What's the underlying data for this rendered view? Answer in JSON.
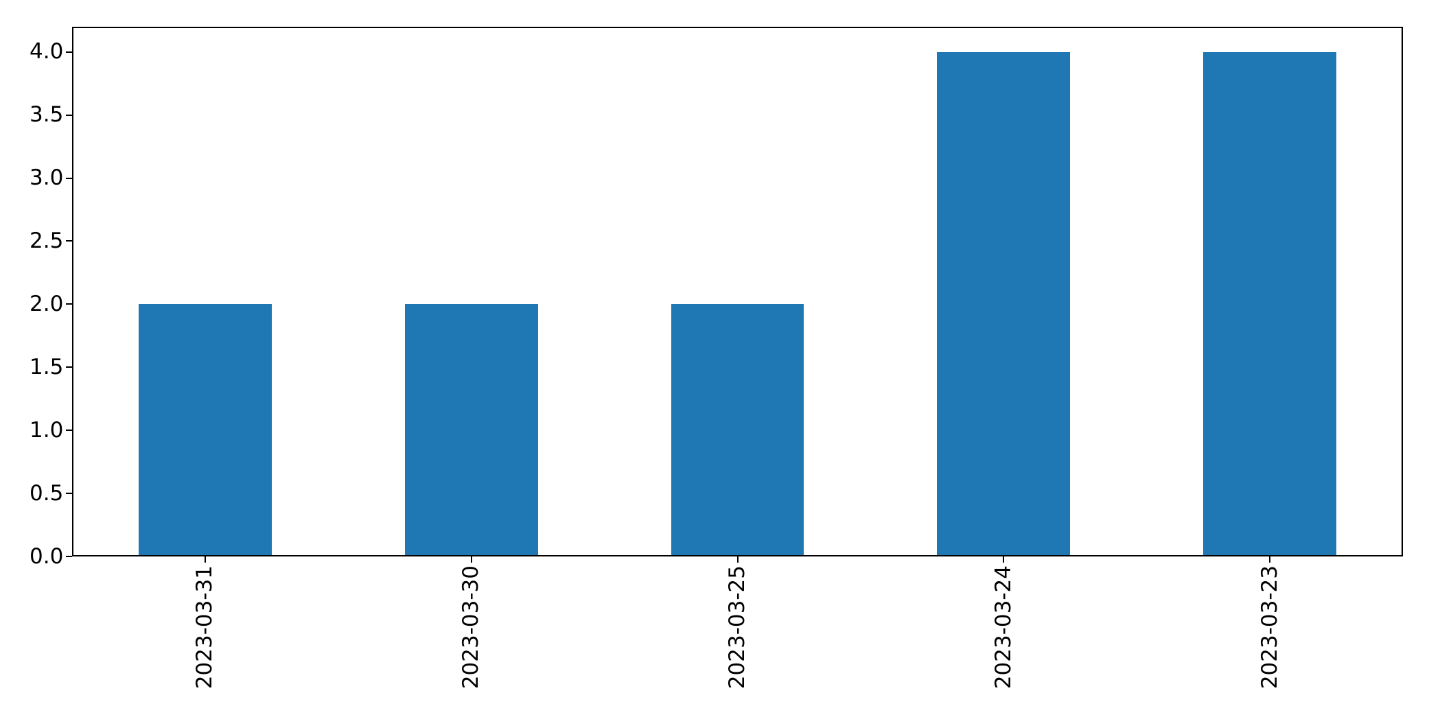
{
  "chart_data": {
    "type": "bar",
    "categories": [
      "2023-03-31",
      "2023-03-30",
      "2023-03-25",
      "2023-03-24",
      "2023-03-23"
    ],
    "values": [
      2,
      2,
      2,
      4,
      4
    ],
    "title": "",
    "xlabel": "",
    "ylabel": "",
    "ylim": [
      0,
      4.2
    ],
    "yticks": [
      0.0,
      0.5,
      1.0,
      1.5,
      2.0,
      2.5,
      3.0,
      3.5,
      4.0
    ],
    "ytick_labels": [
      "0.0",
      "0.5",
      "1.0",
      "1.5",
      "2.0",
      "2.5",
      "3.0",
      "3.5",
      "4.0"
    ],
    "x_tick_rotation": 90,
    "bar_width_fraction": 0.5,
    "grid": false,
    "legend": false,
    "colors": {
      "bar": "#1f77b4",
      "axis": "#000000",
      "tick_label": "#000000",
      "background": "#ffffff"
    }
  }
}
